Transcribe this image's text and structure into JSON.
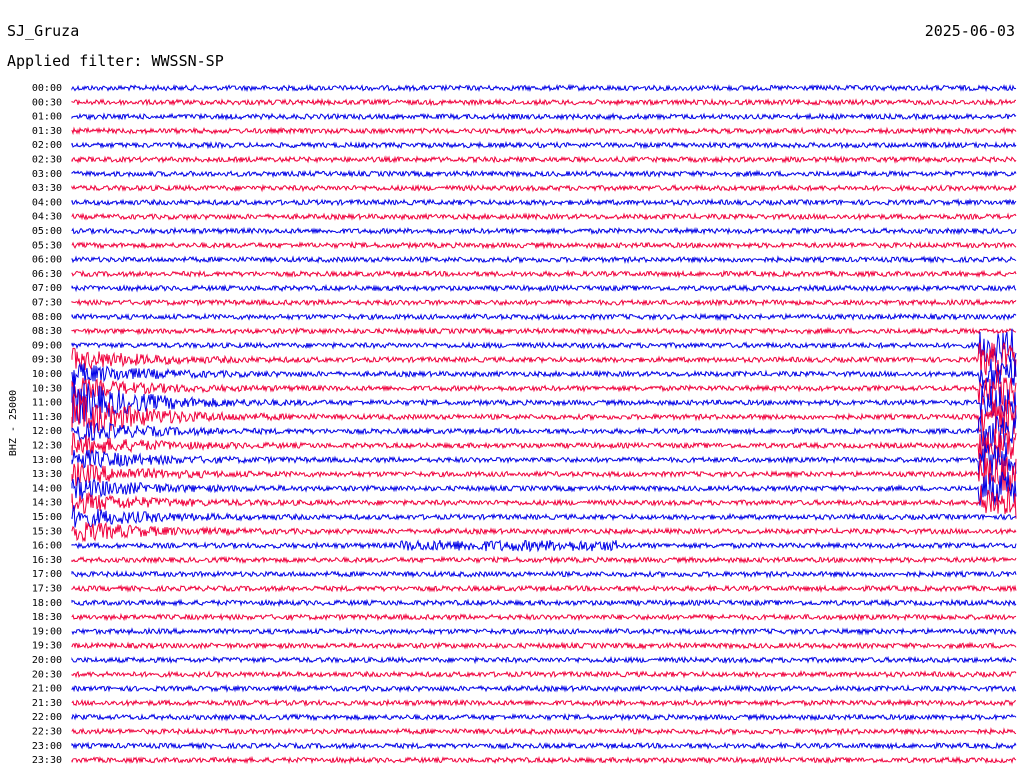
{
  "header": {
    "station": "SJ_Gruza",
    "date": "2025-06-03",
    "filter": "Applied filter: WWSSN-SP"
  },
  "axis_label": "BHZ - 25000",
  "trace_colors": [
    "#0000e6",
    "#f0003c"
  ],
  "row_labels": [
    "00:00",
    "00:30",
    "01:00",
    "01:30",
    "02:00",
    "02:30",
    "03:00",
    "03:30",
    "04:00",
    "04:30",
    "05:00",
    "05:30",
    "06:00",
    "06:30",
    "07:00",
    "07:30",
    "08:00",
    "08:30",
    "09:00",
    "09:30",
    "10:00",
    "10:30",
    "11:00",
    "11:30",
    "12:00",
    "12:30",
    "13:00",
    "13:30",
    "14:00",
    "14:30",
    "15:00",
    "15:30",
    "16:00",
    "16:30",
    "17:00",
    "17:30",
    "18:00",
    "18:30",
    "19:00",
    "19:30",
    "20:00",
    "20:30",
    "21:00",
    "21:30",
    "22:00",
    "22:30",
    "23:00",
    "23:30"
  ]
}
